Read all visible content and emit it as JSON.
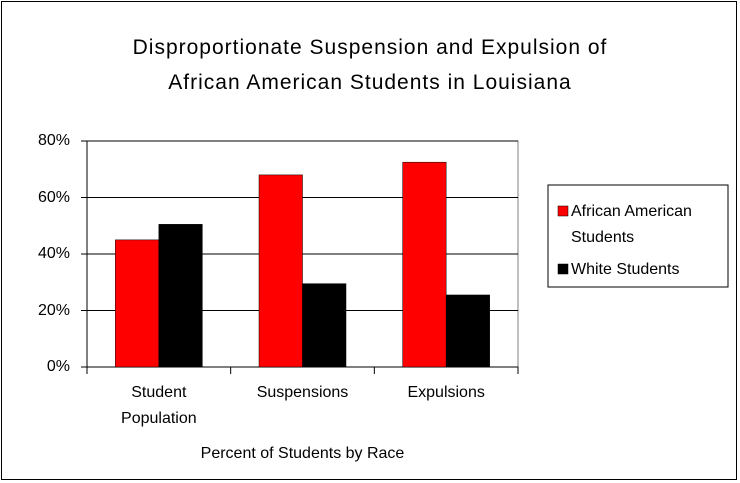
{
  "chart_data": {
    "type": "bar",
    "title": "Disproportionate Suspension and Expulsion of African American Students in Louisiana",
    "x_label": "Percent of Students by Race",
    "categories": [
      "Student Population",
      "Suspensions",
      "Expulsions"
    ],
    "series": [
      {
        "name": "African American Students",
        "color": "#ff0000",
        "values": [
          45,
          68,
          72.5
        ]
      },
      {
        "name": "White Students",
        "color": "#000000",
        "values": [
          50.5,
          29.5,
          25.5
        ]
      }
    ],
    "ylim": [
      0,
      80
    ],
    "yticks": [
      {
        "value": 0,
        "label": "0%"
      },
      {
        "value": 20,
        "label": "20%"
      },
      {
        "value": 40,
        "label": "40%"
      },
      {
        "value": 60,
        "label": "60%"
      },
      {
        "value": 80,
        "label": "80%"
      }
    ],
    "grid": true,
    "legend": "right"
  }
}
